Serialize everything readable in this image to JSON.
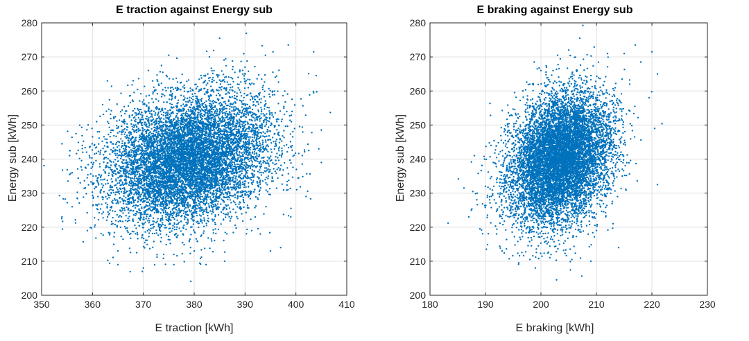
{
  "chart_data": [
    {
      "type": "scatter",
      "title": "E traction against Energy sub",
      "xlabel": "E traction [kWh]",
      "ylabel": "Energy sub [kWh]",
      "xlim": [
        350,
        410
      ],
      "ylim": [
        200,
        280
      ],
      "xticks": [
        "350",
        "360",
        "370",
        "380",
        "390",
        "400",
        "410"
      ],
      "yticks": [
        "200",
        "210",
        "220",
        "230",
        "240",
        "250",
        "260",
        "270",
        "280"
      ],
      "grid": true,
      "marker_color": "#0072bd",
      "distribution": {
        "x_mean": 379,
        "x_std": 8,
        "y_mean": 240,
        "y_std": 9.5,
        "correlation": 0.22,
        "count": 9000
      },
      "points": [
        [
          354,
          223
        ],
        [
          355.5,
          241
        ],
        [
          356,
          236
        ],
        [
          356,
          226
        ],
        [
          358,
          244
        ],
        [
          359,
          219
        ],
        [
          360,
          233
        ],
        [
          361,
          248
        ],
        [
          362,
          256
        ],
        [
          363,
          251
        ],
        [
          364,
          221
        ],
        [
          365,
          213
        ],
        [
          365,
          209
        ],
        [
          368,
          263
        ],
        [
          370,
          208
        ],
        [
          371,
          266
        ],
        [
          373,
          262
        ],
        [
          374,
          212
        ],
        [
          375,
          270.5
        ],
        [
          376,
          209
        ],
        [
          380,
          213
        ],
        [
          383,
          270
        ],
        [
          385,
          275.5
        ],
        [
          386,
          210
        ],
        [
          390,
          267
        ],
        [
          393,
          218
        ],
        [
          394,
          270.5
        ],
        [
          395,
          213
        ],
        [
          395.5,
          271.5
        ],
        [
          397,
          214
        ],
        [
          398.5,
          273.5
        ],
        [
          399,
          223
        ],
        [
          402,
          229
        ],
        [
          403.5,
          271.5
        ],
        [
          404,
          264.5
        ],
        [
          404.5,
          243
        ],
        [
          405,
          248.5
        ],
        [
          405,
          239
        ]
      ]
    },
    {
      "type": "scatter",
      "title": "E braking against Energy sub",
      "xlabel": "E braking [kWh]",
      "ylabel": "Energy sub [kWh]",
      "xlim": [
        180,
        230
      ],
      "ylim": [
        200,
        280
      ],
      "xticks": [
        "180",
        "190",
        "200",
        "210",
        "220",
        "230"
      ],
      "yticks": [
        "200",
        "210",
        "220",
        "230",
        "240",
        "250",
        "260",
        "270",
        "280"
      ],
      "grid": true,
      "marker_color": "#0072bd",
      "distribution": {
        "x_mean": 203.5,
        "x_std": 4.6,
        "y_mean": 240,
        "y_std": 9.5,
        "correlation": 0.25,
        "count": 9000
      },
      "points": [
        [
          187,
          223
        ],
        [
          188,
          241
        ],
        [
          189,
          219.5
        ],
        [
          190,
          232
        ],
        [
          191,
          244
        ],
        [
          192,
          218
        ],
        [
          193,
          213
        ],
        [
          194,
          250
        ],
        [
          196,
          209.5
        ],
        [
          198,
          262
        ],
        [
          199,
          208
        ],
        [
          200,
          266
        ],
        [
          201,
          267
        ],
        [
          203,
          270.5
        ],
        [
          205,
          272
        ],
        [
          207,
          275.5
        ],
        [
          209,
          210
        ],
        [
          210,
          219
        ],
        [
          212,
          271
        ],
        [
          213,
          221
        ],
        [
          214,
          214
        ],
        [
          215,
          271
        ],
        [
          216,
          262
        ],
        [
          217,
          273.5
        ],
        [
          218,
          268.5
        ],
        [
          220,
          271.5
        ],
        [
          221,
          265
        ],
        [
          221,
          232.5
        ],
        [
          220.5,
          249
        ],
        [
          219.5,
          258
        ]
      ]
    }
  ]
}
